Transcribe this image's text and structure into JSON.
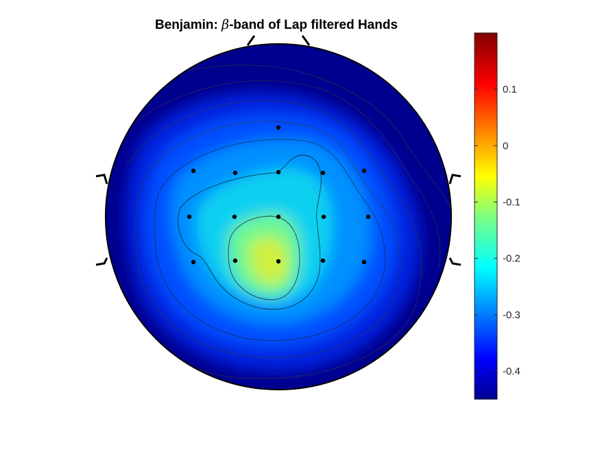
{
  "chart_data": {
    "type": "heatmap",
    "subtype": "eeg-topographic-map",
    "title": {
      "prefix": "Benjamin: ",
      "symbol": "β",
      "suffix": "-band of Lap filtered Hands"
    },
    "colormap": "jet",
    "color_limits": [
      -0.45,
      0.2
    ],
    "colorbar": {
      "position": "right",
      "ticks": [
        0.1,
        0,
        -0.1,
        -0.2,
        -0.3,
        -0.4
      ],
      "tick_labels": [
        "0.1",
        "0",
        "-0.1",
        "-0.2",
        "-0.3",
        "-0.4"
      ]
    },
    "contour_levels": [
      -0.4,
      -0.35,
      -0.3,
      -0.25,
      -0.2,
      -0.15
    ],
    "electrodes_marked": 16,
    "value_range_estimate": {
      "min": -0.45,
      "max": -0.1
    },
    "peak_value_estimate": -0.1,
    "axes": "off",
    "grid": false
  }
}
